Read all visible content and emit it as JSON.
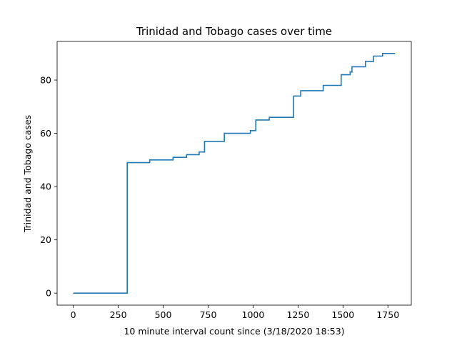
{
  "chart_data": {
    "type": "line",
    "title": "Trinidad and Tobago cases over time",
    "xlabel": "10 minute interval count since (3/18/2020 18:53)",
    "ylabel": "Trinidad and Tobago cases",
    "xlim": [
      -90,
      1880
    ],
    "ylim": [
      -4.5,
      94.5
    ],
    "xticks": [
      0,
      250,
      500,
      750,
      1000,
      1250,
      1500,
      1750
    ],
    "yticks": [
      0,
      20,
      40,
      60,
      80
    ],
    "grid": false,
    "line_color": "#1f77b4",
    "step": "post",
    "series": [
      {
        "x": [
          0,
          300,
          425,
          555,
          630,
          700,
          730,
          840,
          985,
          1015,
          1090,
          1225,
          1265,
          1390,
          1490,
          1540,
          1550,
          1625,
          1670,
          1720,
          1790
        ],
        "y": [
          0,
          49,
          50,
          51,
          52,
          53,
          57,
          60,
          61,
          65,
          66,
          74,
          76,
          78,
          82,
          83,
          85,
          87,
          89,
          90,
          90
        ]
      }
    ]
  }
}
